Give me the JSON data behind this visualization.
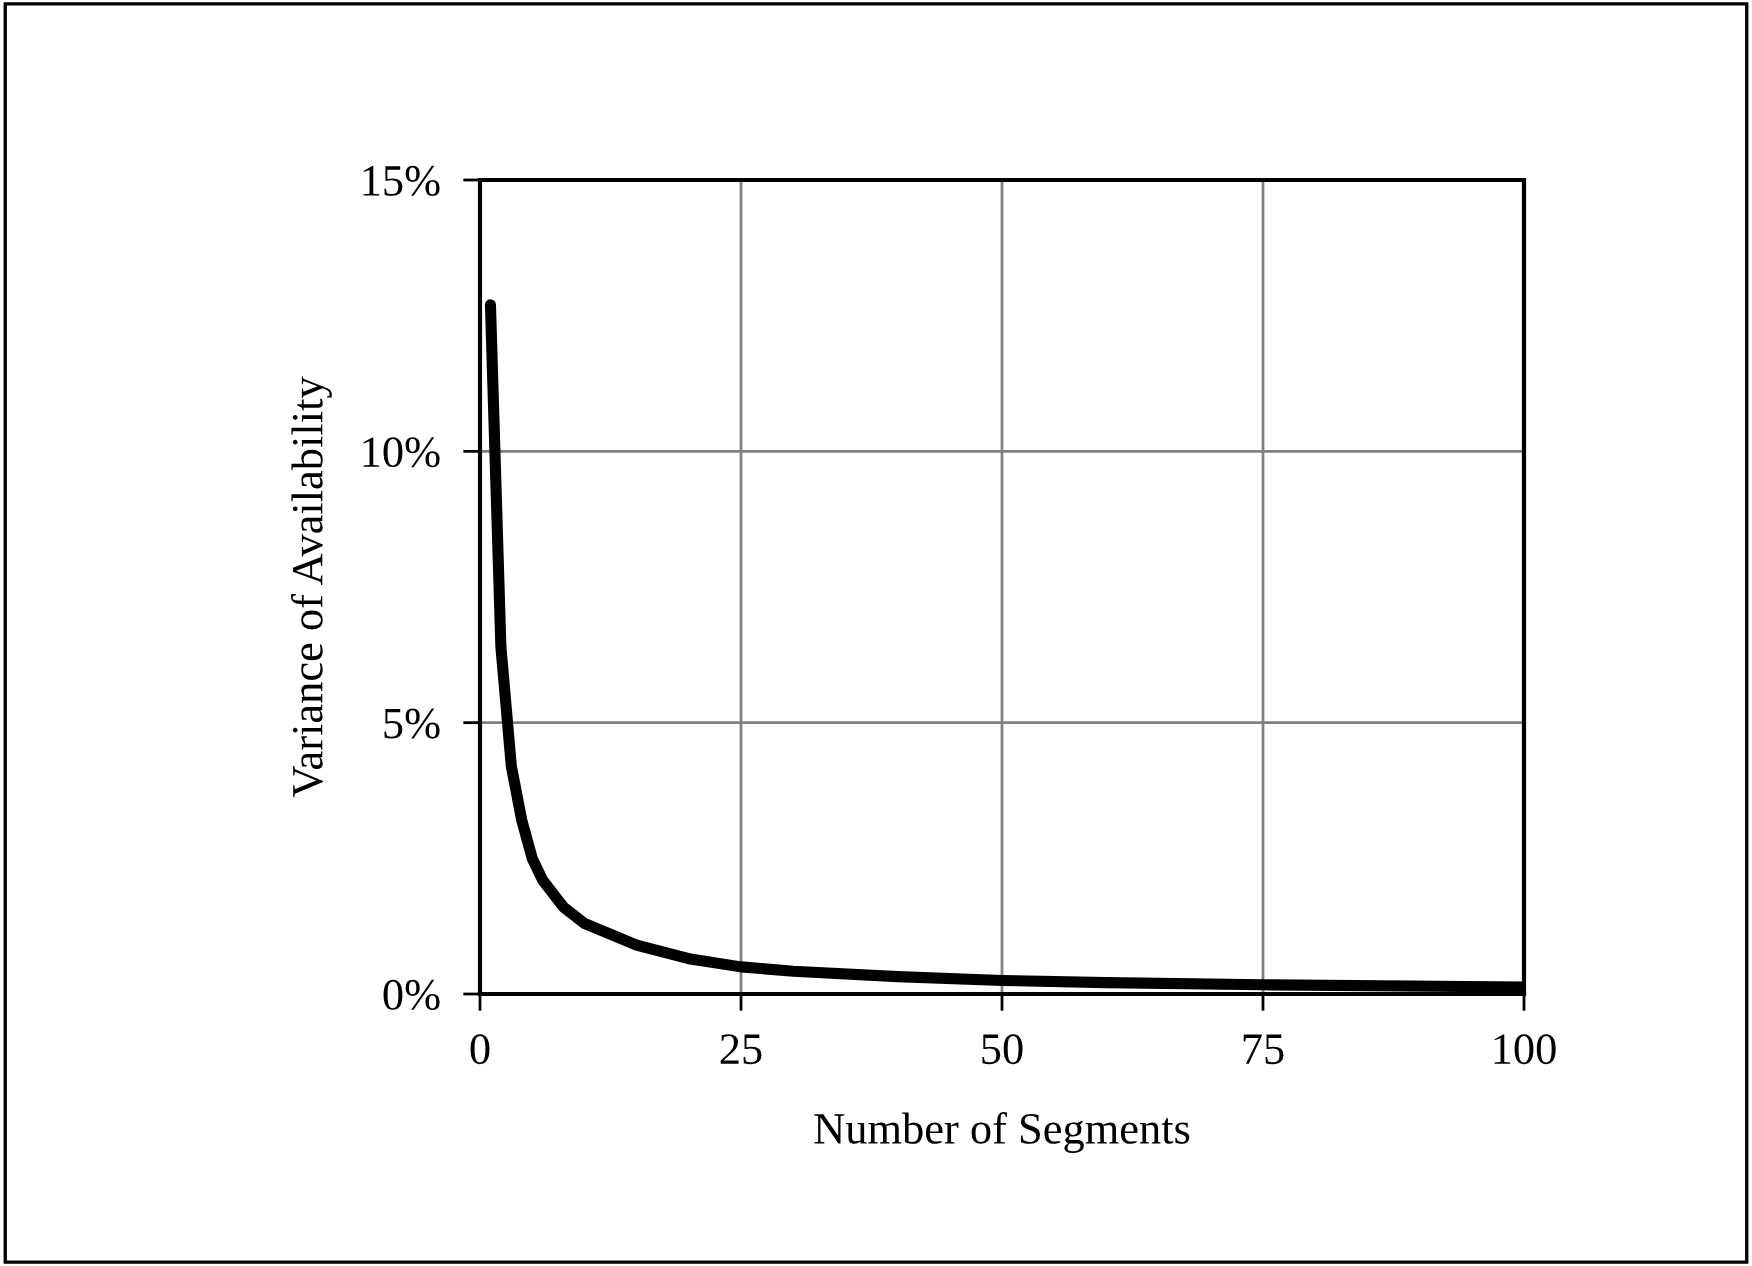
{
  "chart_data": {
    "type": "line",
    "xlabel": "Number of Segments",
    "ylabel": "Variance of Availability",
    "series": [
      {
        "color": "#000000",
        "x": [
          1,
          2,
          3,
          4,
          5,
          6,
          8,
          10,
          15,
          20,
          25,
          30,
          40,
          50,
          60,
          75,
          100
        ],
        "values": [
          12.7,
          6.4,
          4.2,
          3.2,
          2.5,
          2.1,
          1.6,
          1.3,
          0.9,
          0.65,
          0.5,
          0.42,
          0.32,
          0.25,
          0.21,
          0.17,
          0.13
        ]
      }
    ],
    "xlim": [
      0,
      100
    ],
    "xticks": [
      0,
      25,
      50,
      75,
      100
    ],
    "ylim": [
      0,
      15
    ],
    "yticks": [
      {
        "value": 0,
        "label": "0%"
      },
      {
        "value": 5,
        "label": "5%"
      },
      {
        "value": 10,
        "label": "10%"
      },
      {
        "value": 15,
        "label": "15%"
      }
    ],
    "grid": true,
    "line_style": "solid",
    "marker": "none"
  }
}
